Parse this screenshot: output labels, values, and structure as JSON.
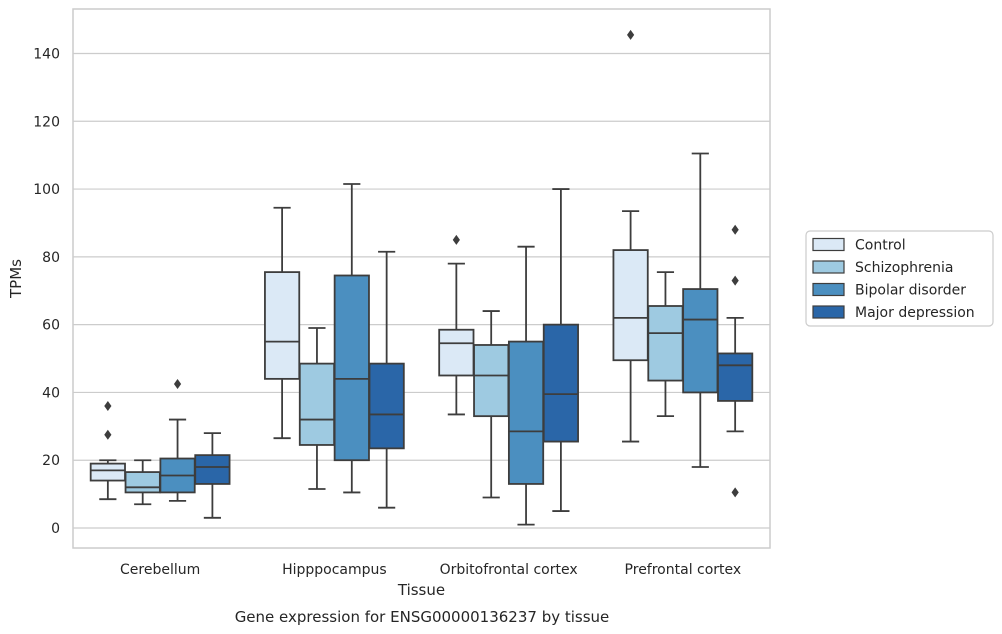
{
  "chart_data": {
    "type": "boxplot",
    "caption": "Gene expression for ENSG00000136237 by tissue",
    "xlabel": "Tissue",
    "ylabel": "TPMs",
    "ylim": [
      -6,
      153
    ],
    "yticks": [
      0,
      20,
      40,
      60,
      80,
      100,
      120,
      140
    ],
    "grid": "horizontal",
    "legend_position": "right",
    "categories": [
      "Cerebellum",
      "Hipppocampus",
      "Orbitofrontal cortex",
      "Prefrontal cortex"
    ],
    "series": [
      {
        "name": "Control",
        "color": "#dbe9f6",
        "boxes": [
          {
            "whislo": 8.5,
            "q1": 14,
            "med": 17,
            "q3": 19,
            "whishi": 20,
            "fliers": [
              36,
              27.5
            ]
          },
          {
            "whislo": 26.5,
            "q1": 44,
            "med": 55,
            "q3": 75.5,
            "whishi": 94.5,
            "fliers": []
          },
          {
            "whislo": 33.5,
            "q1": 45,
            "med": 54.5,
            "q3": 58.5,
            "whishi": 78,
            "fliers": [
              85
            ]
          },
          {
            "whislo": 25.5,
            "q1": 49.5,
            "med": 62,
            "q3": 82,
            "whishi": 93.5,
            "fliers": [
              145.5
            ]
          }
        ]
      },
      {
        "name": "Schizophrenia",
        "color": "#9ecae1",
        "boxes": [
          {
            "whislo": 7,
            "q1": 10.5,
            "med": 12,
            "q3": 16.5,
            "whishi": 20,
            "fliers": []
          },
          {
            "whislo": 11.5,
            "q1": 24.5,
            "med": 32,
            "q3": 48.5,
            "whishi": 59,
            "fliers": []
          },
          {
            "whislo": 9,
            "q1": 33,
            "med": 45,
            "q3": 54,
            "whishi": 64,
            "fliers": []
          },
          {
            "whislo": 33,
            "q1": 43.5,
            "med": 57.5,
            "q3": 65.5,
            "whishi": 75.5,
            "fliers": []
          }
        ]
      },
      {
        "name": "Bipolar disorder",
        "color": "#4b8fc0",
        "boxes": [
          {
            "whislo": 8,
            "q1": 10.5,
            "med": 15.5,
            "q3": 20.5,
            "whishi": 32,
            "fliers": [
              42.5
            ]
          },
          {
            "whislo": 10.5,
            "q1": 20,
            "med": 44,
            "q3": 74.5,
            "whishi": 101.5,
            "fliers": []
          },
          {
            "whislo": 1,
            "q1": 13,
            "med": 28.5,
            "q3": 55,
            "whishi": 83,
            "fliers": []
          },
          {
            "whislo": 18,
            "q1": 40,
            "med": 61.5,
            "q3": 70.5,
            "whishi": 110.5,
            "fliers": []
          }
        ]
      },
      {
        "name": "Major depression",
        "color": "#2a66a8",
        "boxes": [
          {
            "whislo": 3,
            "q1": 13,
            "med": 18,
            "q3": 21.5,
            "whishi": 28,
            "fliers": []
          },
          {
            "whislo": 6,
            "q1": 23.5,
            "med": 33.5,
            "q3": 48.5,
            "whishi": 81.5,
            "fliers": []
          },
          {
            "whislo": 5,
            "q1": 25.5,
            "med": 39.5,
            "q3": 60,
            "whishi": 100,
            "fliers": []
          },
          {
            "whislo": 28.5,
            "q1": 37.5,
            "med": 48,
            "q3": 51.5,
            "whishi": 62,
            "fliers": [
              88,
              73,
              10.5
            ]
          }
        ]
      }
    ]
  }
}
